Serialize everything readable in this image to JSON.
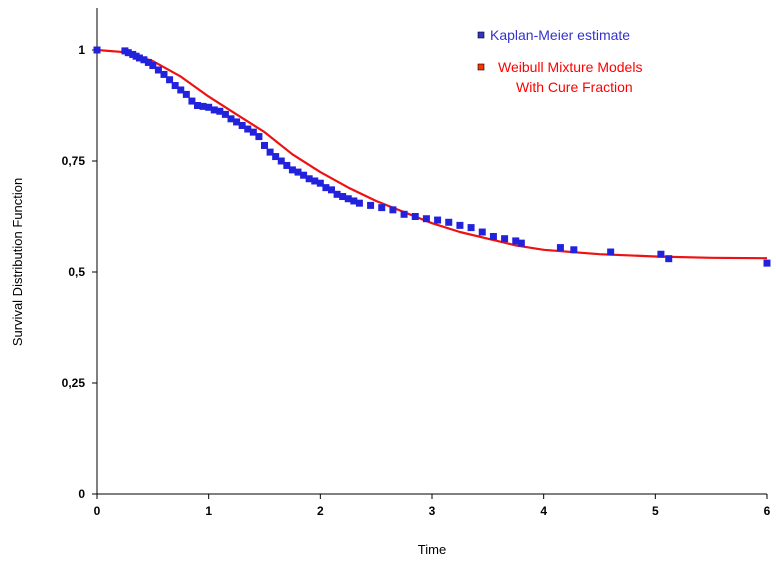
{
  "chart_data": {
    "type": "scatter",
    "title": "",
    "xlabel": "Time",
    "ylabel": "Survival Distribution Function",
    "xlim": [
      0,
      6
    ],
    "ylim": [
      0,
      1.1
    ],
    "x_ticks": [
      "0",
      "1",
      "2",
      "3",
      "4",
      "5",
      "6"
    ],
    "y_ticks": [
      "0",
      "0,25",
      "0,5",
      "0,75",
      "1"
    ],
    "y_tick_values": [
      0,
      0.25,
      0.5,
      0.75,
      1
    ],
    "grid": false,
    "legend_position": "top-right",
    "legend": [
      {
        "label": "Kaplan-Meier estimate",
        "color": "#3333cc"
      },
      {
        "label": "Weibull Mixture Models",
        "label2": "With Cure Fraction",
        "color": "#ff0000"
      }
    ],
    "series": [
      {
        "name": "Kaplan-Meier estimate",
        "kind": "markers",
        "color": "#2222dd",
        "x": [
          0.0,
          0.25,
          0.28,
          0.32,
          0.35,
          0.38,
          0.42,
          0.46,
          0.5,
          0.55,
          0.6,
          0.65,
          0.7,
          0.75,
          0.8,
          0.85,
          0.9,
          0.95,
          1.0,
          1.05,
          1.1,
          1.15,
          1.2,
          1.25,
          1.3,
          1.35,
          1.4,
          1.45,
          1.5,
          1.55,
          1.6,
          1.65,
          1.7,
          1.75,
          1.8,
          1.85,
          1.9,
          1.95,
          2.0,
          2.05,
          2.1,
          2.15,
          2.2,
          2.25,
          2.3,
          2.35,
          2.45,
          2.55,
          2.65,
          2.75,
          2.85,
          2.95,
          3.05,
          3.15,
          3.25,
          3.35,
          3.45,
          3.55,
          3.65,
          3.75,
          3.8,
          4.15,
          4.27,
          4.6,
          5.05,
          5.12,
          6.0
        ],
        "y": [
          1.0,
          0.998,
          0.994,
          0.99,
          0.986,
          0.982,
          0.978,
          0.972,
          0.965,
          0.955,
          0.945,
          0.933,
          0.92,
          0.91,
          0.9,
          0.885,
          0.875,
          0.873,
          0.871,
          0.865,
          0.862,
          0.855,
          0.845,
          0.838,
          0.83,
          0.822,
          0.815,
          0.805,
          0.785,
          0.77,
          0.76,
          0.75,
          0.74,
          0.73,
          0.725,
          0.718,
          0.71,
          0.705,
          0.7,
          0.69,
          0.685,
          0.675,
          0.67,
          0.665,
          0.66,
          0.655,
          0.65,
          0.645,
          0.64,
          0.63,
          0.625,
          0.62,
          0.617,
          0.612,
          0.605,
          0.6,
          0.59,
          0.58,
          0.575,
          0.57,
          0.565,
          0.555,
          0.55,
          0.545,
          0.54,
          0.53,
          0.52
        ]
      },
      {
        "name": "Weibull Mixture Models With Cure Fraction",
        "kind": "line",
        "color": "#ee1111",
        "x": [
          0.0,
          0.25,
          0.5,
          0.75,
          1.0,
          1.25,
          1.5,
          1.75,
          2.0,
          2.25,
          2.5,
          2.75,
          3.0,
          3.25,
          3.5,
          3.75,
          4.0,
          4.5,
          5.0,
          5.5,
          6.0
        ],
        "y": [
          1.0,
          0.995,
          0.975,
          0.94,
          0.895,
          0.855,
          0.815,
          0.765,
          0.725,
          0.69,
          0.66,
          0.635,
          0.61,
          0.59,
          0.575,
          0.56,
          0.55,
          0.54,
          0.535,
          0.532,
          0.531
        ]
      }
    ]
  }
}
